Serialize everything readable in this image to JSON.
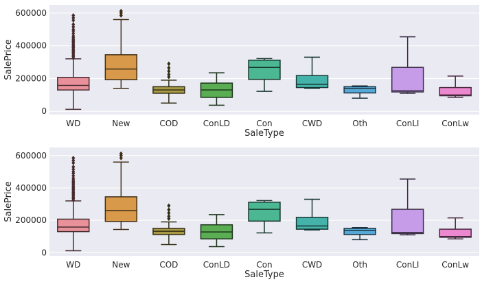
{
  "chart_data": [
    {
      "type": "boxplot",
      "xlabel": "SaleType",
      "ylabel": "SalePrice",
      "ylim": [
        -20000,
        650000
      ],
      "yticks": [
        0,
        200000,
        400000,
        600000
      ],
      "grid": true,
      "categories": [
        "WD",
        "New",
        "COD",
        "ConLD",
        "Con",
        "CWD",
        "Oth",
        "ConLI",
        "ConLw"
      ],
      "boxes": [
        {
          "whislo": 12000,
          "q1": 130000,
          "med": 158000,
          "q3": 207000,
          "whishi": 320000,
          "fliers": [
            325000,
            335000,
            342000,
            350000,
            358000,
            365000,
            372000,
            380000,
            388000,
            395000,
            402000,
            410000,
            418000,
            425000,
            432000,
            440000,
            450000,
            460000,
            475000,
            490000,
            500000,
            515000,
            530000,
            555000,
            570000,
            585000
          ],
          "color": "#e8919b"
        },
        {
          "whislo": 140000,
          "q1": 193000,
          "med": 258000,
          "q3": 345000,
          "whishi": 560000,
          "fliers": [
            585000,
            600000,
            612000
          ],
          "color": "#d89a4a"
        },
        {
          "whislo": 50000,
          "q1": 110000,
          "med": 130000,
          "q3": 150000,
          "whishi": 190000,
          "fliers": [
            210000,
            225000,
            245000,
            265000,
            290000
          ],
          "color": "#a89a45"
        },
        {
          "whislo": 37000,
          "q1": 85000,
          "med": 130000,
          "q3": 172000,
          "whishi": 235000,
          "fliers": [],
          "color": "#5aad52"
        },
        {
          "whislo": 122000,
          "q1": 195000,
          "med": 268000,
          "q3": 312000,
          "whishi": 322000,
          "fliers": [],
          "color": "#4cb893"
        },
        {
          "whislo": 140000,
          "q1": 145000,
          "med": 165000,
          "q3": 218000,
          "whishi": 330000,
          "fliers": [],
          "color": "#46b3aa"
        },
        {
          "whislo": 80000,
          "q1": 112000,
          "med": 138000,
          "q3": 150000,
          "whishi": 155000,
          "fliers": [],
          "color": "#56a9d6"
        },
        {
          "whislo": 110000,
          "q1": 118000,
          "med": 125000,
          "q3": 268000,
          "whishi": 455000,
          "fliers": [],
          "color": "#c69be8"
        },
        {
          "whislo": 85000,
          "q1": 95000,
          "med": 100000,
          "q3": 145000,
          "whishi": 215000,
          "fliers": [],
          "color": "#ec88cf"
        }
      ]
    },
    {
      "type": "boxplot",
      "xlabel": "SaleType",
      "ylabel": "SalePrice",
      "ylim": [
        -20000,
        650000
      ],
      "yticks": [
        0,
        200000,
        400000,
        600000
      ],
      "grid": true,
      "categories": [
        "WD",
        "New",
        "COD",
        "ConLD",
        "Con",
        "CWD",
        "Oth",
        "ConLI",
        "ConLw"
      ],
      "boxes": [
        {
          "whislo": 12000,
          "q1": 130000,
          "med": 158000,
          "q3": 207000,
          "whishi": 320000,
          "fliers": [
            325000,
            335000,
            342000,
            350000,
            358000,
            365000,
            372000,
            380000,
            388000,
            395000,
            402000,
            410000,
            418000,
            425000,
            432000,
            440000,
            450000,
            460000,
            475000,
            490000,
            500000,
            515000,
            530000,
            555000,
            570000,
            585000
          ],
          "color": "#e8919b"
        },
        {
          "whislo": 143000,
          "q1": 193000,
          "med": 260000,
          "q3": 345000,
          "whishi": 560000,
          "fliers": [
            585000,
            600000,
            612000
          ],
          "color": "#d89a4a"
        },
        {
          "whislo": 50000,
          "q1": 112000,
          "med": 132000,
          "q3": 150000,
          "whishi": 190000,
          "fliers": [
            210000,
            225000,
            245000,
            265000,
            290000
          ],
          "color": "#a89a45"
        },
        {
          "whislo": 37000,
          "q1": 85000,
          "med": 128000,
          "q3": 172000,
          "whishi": 235000,
          "fliers": [],
          "color": "#5aad52"
        },
        {
          "whislo": 122000,
          "q1": 195000,
          "med": 268000,
          "q3": 312000,
          "whishi": 322000,
          "fliers": [],
          "color": "#4cb893"
        },
        {
          "whislo": 140000,
          "q1": 145000,
          "med": 165000,
          "q3": 218000,
          "whishi": 330000,
          "fliers": [],
          "color": "#46b3aa"
        },
        {
          "whislo": 80000,
          "q1": 112000,
          "med": 138000,
          "q3": 150000,
          "whishi": 155000,
          "fliers": [],
          "color": "#56a9d6"
        },
        {
          "whislo": 110000,
          "q1": 118000,
          "med": 125000,
          "q3": 268000,
          "whishi": 455000,
          "fliers": [],
          "color": "#c69be8"
        },
        {
          "whislo": 85000,
          "q1": 95000,
          "med": 100000,
          "q3": 145000,
          "whishi": 215000,
          "fliers": [],
          "color": "#ec88cf"
        }
      ]
    }
  ]
}
